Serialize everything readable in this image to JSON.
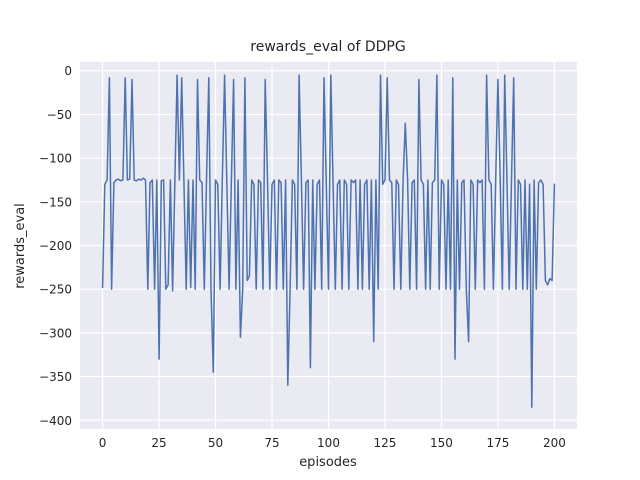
{
  "chart_data": {
    "type": "line",
    "title": "rewards_eval of DDPG",
    "xlabel": "episodes",
    "ylabel": "rewards_eval",
    "x_start": 0,
    "x_step": 1,
    "values": [
      -248,
      -130,
      -125,
      -8,
      -250,
      -128,
      -125,
      -124,
      -126,
      -125,
      -8,
      -125,
      -124,
      -10,
      -125,
      -126,
      -124,
      -125,
      -123,
      -125,
      -250,
      -128,
      -125,
      -250,
      -125,
      -330,
      -126,
      -125,
      -250,
      -245,
      -125,
      -252,
      -125,
      -5,
      -125,
      -8,
      -126,
      -250,
      -125,
      -248,
      -125,
      -250,
      -10,
      -125,
      -128,
      -250,
      -125,
      -8,
      -250,
      -345,
      -125,
      -130,
      -250,
      -125,
      -5,
      -128,
      -250,
      -125,
      -10,
      -250,
      -125,
      -305,
      -250,
      -8,
      -240,
      -235,
      -125,
      -130,
      -250,
      -125,
      -128,
      -250,
      -10,
      -125,
      -250,
      -130,
      -125,
      -250,
      -125,
      -128,
      -250,
      -125,
      -360,
      -250,
      -125,
      -130,
      -250,
      -5,
      -125,
      -250,
      -128,
      -125,
      -340,
      -125,
      -250,
      -130,
      -125,
      -250,
      -8,
      -125,
      -250,
      -5,
      -125,
      -250,
      -130,
      -125,
      -250,
      -125,
      -130,
      -250,
      -125,
      -128,
      -125,
      -250,
      -125,
      -250,
      -130,
      -125,
      -250,
      -125,
      -310,
      -125,
      -250,
      -5,
      -130,
      -125,
      -8,
      -125,
      -128,
      -250,
      -125,
      -130,
      -250,
      -125,
      -60,
      -125,
      -250,
      -128,
      -125,
      -250,
      -10,
      -125,
      -130,
      -250,
      -125,
      -250,
      -128,
      -125,
      -5,
      -250,
      -125,
      -130,
      -250,
      -125,
      -250,
      -8,
      -330,
      -125,
      -250,
      -128,
      -125,
      -250,
      -310,
      -125,
      -130,
      -250,
      -125,
      -128,
      -125,
      -250,
      -5,
      -125,
      -130,
      -250,
      -125,
      -10,
      -125,
      -250,
      -5,
      -128,
      -250,
      -125,
      -8,
      -250,
      -125,
      -130,
      -250,
      -125,
      -250,
      -130,
      -385,
      -125,
      -250,
      -128,
      -125,
      -130,
      -240,
      -245,
      -238,
      -240,
      -130
    ],
    "xticks": [
      0,
      25,
      50,
      75,
      100,
      125,
      150,
      175,
      200
    ],
    "yticks": [
      0,
      -50,
      -100,
      -150,
      -200,
      -250,
      -300,
      -350,
      -400
    ],
    "xlim": [
      -10,
      210
    ],
    "ylim": [
      -410,
      10
    ],
    "grid": true,
    "legend_position": "none",
    "line_color": "#4c72b0",
    "axes_background": "#eaeaf2",
    "grid_color": "#ffffff",
    "text_color": "#262626"
  }
}
